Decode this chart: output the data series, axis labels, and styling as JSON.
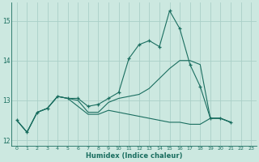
{
  "xlabel": "Humidex (Indice chaleur)",
  "bg_color": "#cce8e0",
  "grid_color": "#aacfc8",
  "line_color": "#1a6e60",
  "xlim": [
    -0.5,
    23.5
  ],
  "ylim": [
    11.85,
    15.45
  ],
  "yticks": [
    12,
    13,
    14,
    15
  ],
  "xtick_labels": [
    "0",
    "1",
    "2",
    "3",
    "4",
    "5",
    "6",
    "7",
    "8",
    "9",
    "10",
    "11",
    "12",
    "13",
    "14",
    "15",
    "16",
    "17",
    "18",
    "19",
    "20",
    "21",
    "22",
    "23"
  ],
  "series": [
    {
      "x": [
        0,
        1,
        2,
        3,
        4,
        5,
        6,
        7,
        8,
        9,
        10,
        11,
        12,
        13,
        14,
        15,
        16,
        17,
        18,
        19,
        20,
        21
      ],
      "y": [
        12.5,
        12.2,
        12.7,
        12.8,
        13.1,
        13.05,
        13.05,
        12.85,
        12.9,
        13.05,
        13.2,
        14.05,
        14.4,
        14.5,
        14.35,
        15.25,
        14.8,
        13.9,
        13.35,
        12.55,
        12.55,
        12.45
      ],
      "marker": true
    },
    {
      "x": [
        0,
        1,
        2,
        3,
        4,
        5,
        6,
        7,
        8,
        9,
        10,
        11,
        12,
        13,
        14,
        15,
        16,
        17,
        18,
        19,
        20,
        21
      ],
      "y": [
        12.5,
        12.2,
        12.7,
        12.8,
        13.1,
        13.05,
        13.0,
        12.7,
        12.7,
        12.95,
        13.05,
        13.1,
        13.15,
        13.3,
        13.55,
        13.8,
        14.0,
        14.0,
        13.9,
        12.55,
        12.55,
        12.45
      ],
      "marker": false
    },
    {
      "x": [
        0,
        1,
        2,
        3,
        4,
        5,
        6,
        7,
        8,
        9,
        10,
        11,
        12,
        13,
        14,
        15,
        16,
        17,
        18,
        19,
        20,
        21
      ],
      "y": [
        12.5,
        12.2,
        12.7,
        12.8,
        13.1,
        13.05,
        12.85,
        12.65,
        12.65,
        12.75,
        12.7,
        12.65,
        12.6,
        12.55,
        12.5,
        12.45,
        12.45,
        12.4,
        12.4,
        12.55,
        12.55,
        12.45
      ],
      "marker": false
    }
  ]
}
